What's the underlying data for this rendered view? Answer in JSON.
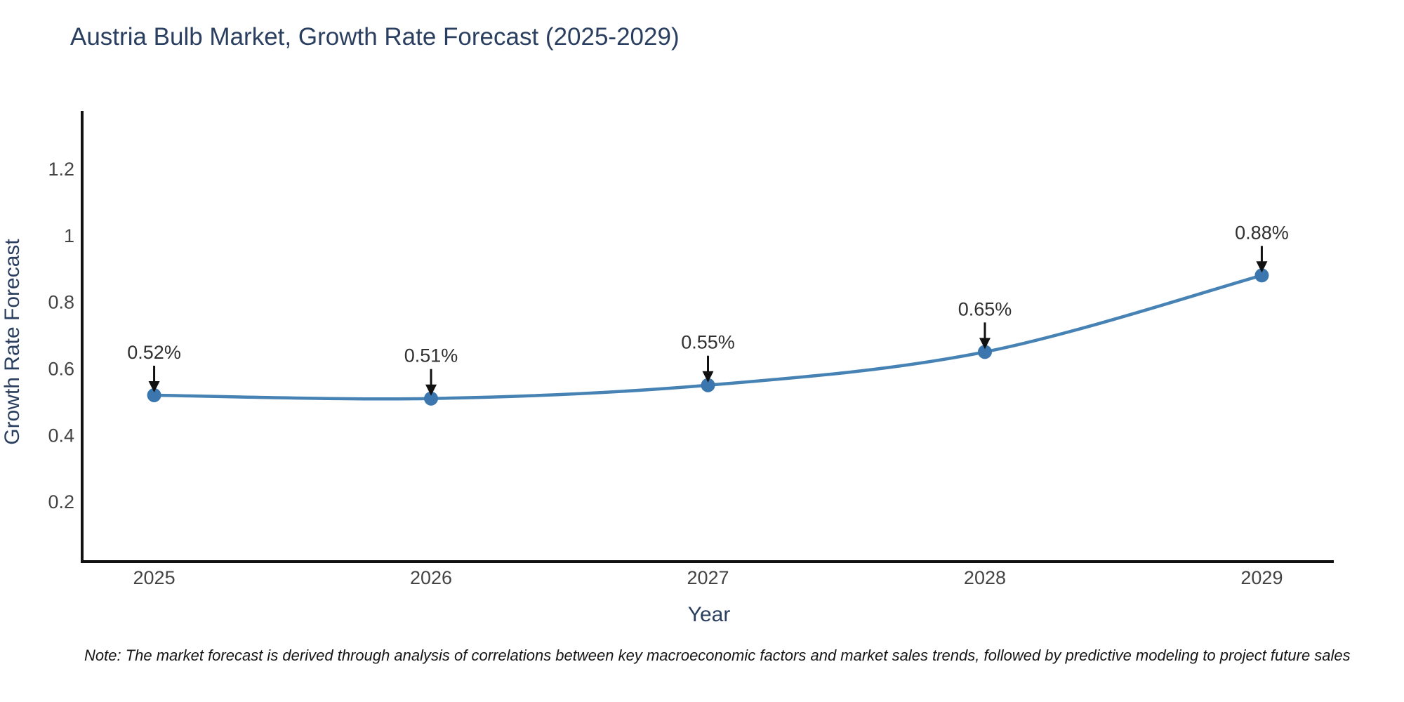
{
  "page": {
    "background": "#ffffff"
  },
  "title": {
    "text": "Austria Bulb Market, Growth Rate Forecast (2025-2029)",
    "color": "#2a3f5f"
  },
  "axes": {
    "x_title": "Year",
    "y_title": "Growth Rate Forecast",
    "x_tick_labels": [
      "2025",
      "2026",
      "2027",
      "2028",
      "2029"
    ],
    "y_tick_labels": [
      "0.2",
      "0.4",
      "0.6",
      "0.8",
      "1",
      "1.2"
    ]
  },
  "note": {
    "text": "Note: The market forecast is derived through analysis of correlations between key macroeconomic factors and market sales trends, followed by predictive modeling to project future sales"
  },
  "chart_data": {
    "type": "line",
    "title": "Austria Bulb Market, Growth Rate Forecast (2025-2029)",
    "xlabel": "Year",
    "ylabel": "Growth Rate Forecast",
    "x": [
      2025,
      2026,
      2027,
      2028,
      2029
    ],
    "series": [
      {
        "name": "Growth Rate Forecast",
        "values": [
          0.52,
          0.51,
          0.55,
          0.65,
          0.88
        ]
      }
    ],
    "point_labels": [
      "0.52%",
      "0.51%",
      "0.55%",
      "0.65%",
      "0.88%"
    ],
    "y_tick_values": [
      0.2,
      0.4,
      0.6,
      0.8,
      1,
      1.2
    ],
    "xlim": [
      2024.74,
      2029.26
    ],
    "ylim": [
      0.02,
      1.37
    ],
    "grid": false,
    "legend": false,
    "line_shape": "spline",
    "annotation_arrows": true,
    "colors": {
      "line": "#4682b4",
      "marker": "#3b77ae",
      "axis": "#111111",
      "tick_label": "#444444",
      "axis_title": "#2a3f5f",
      "title": "#2a3f5f",
      "annotation_text": "#303030",
      "arrow": "#111111",
      "background": "#ffffff"
    }
  }
}
